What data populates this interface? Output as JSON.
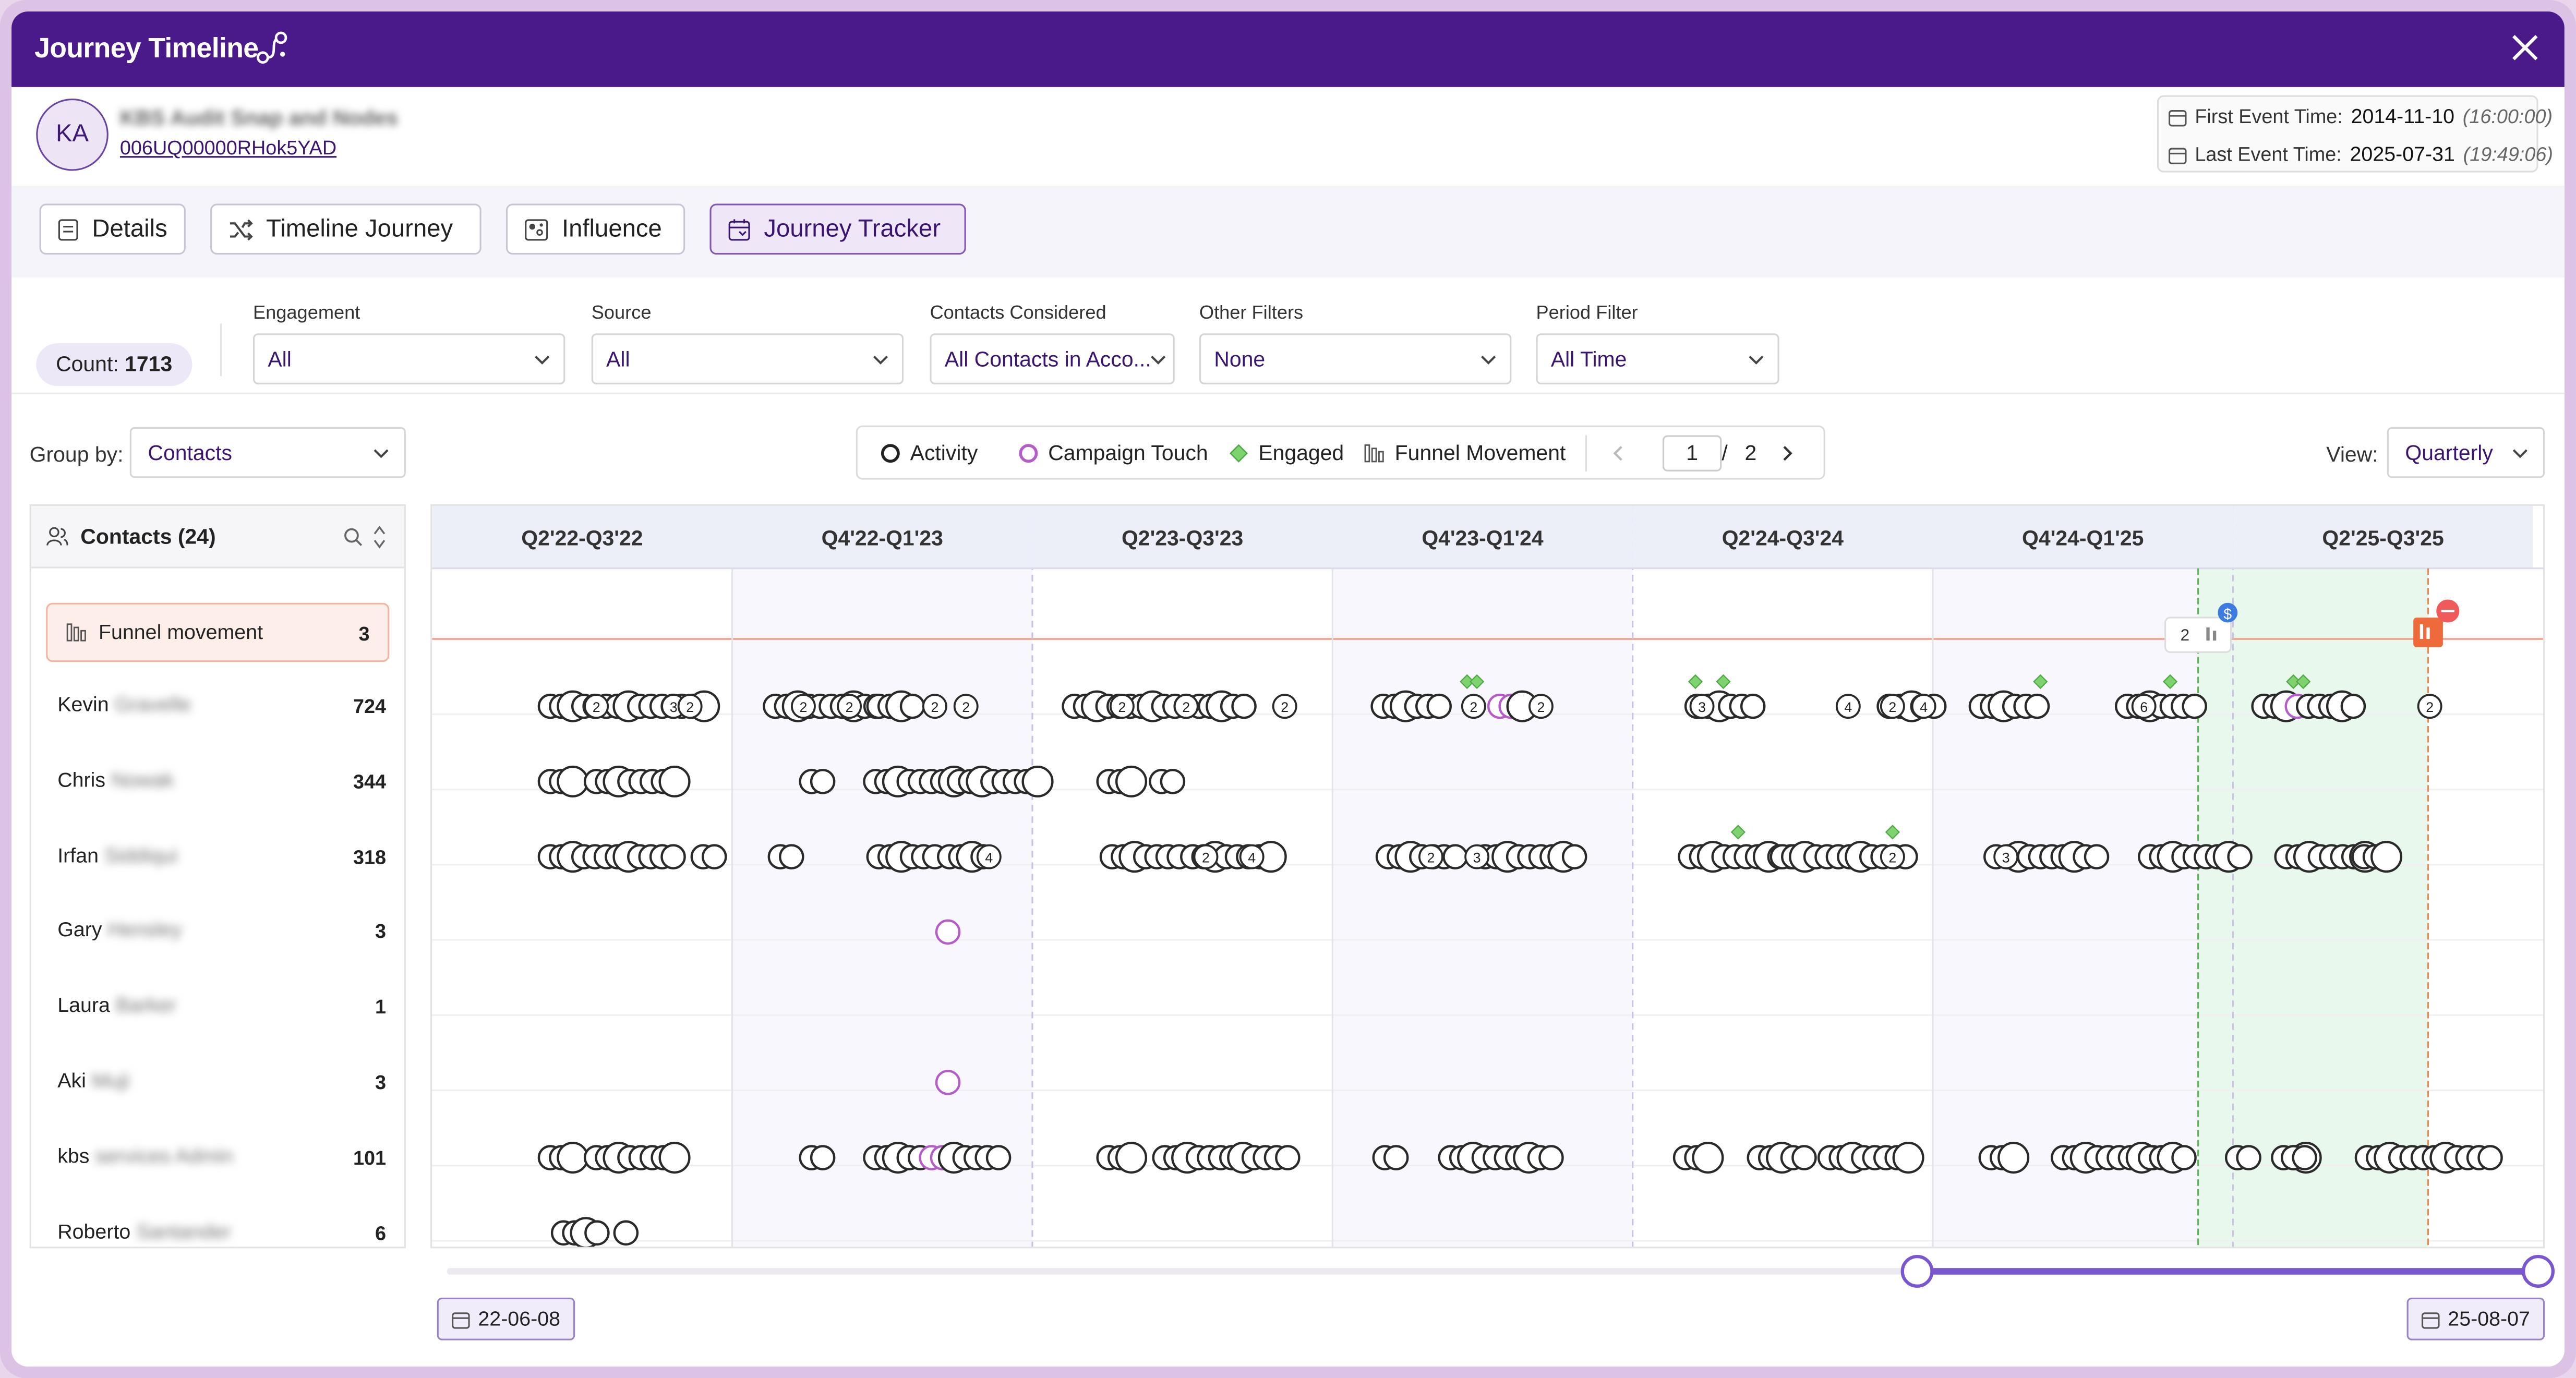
{
  "window": {
    "title": "Journey Timeline"
  },
  "account": {
    "initials": "KA",
    "name": "KBS Audit Snap and Nodes",
    "id": "006UQ00000RHok5YAD"
  },
  "events": {
    "first_label": "First Event Time:",
    "first_date": "2014-11-10",
    "first_time": "(16:00:00)",
    "last_label": "Last Event Time:",
    "last_date": "2025-07-31",
    "last_time": "(19:49:06)"
  },
  "tabs": [
    {
      "label": "Details",
      "icon": "document-icon"
    },
    {
      "label": "Timeline Journey",
      "icon": "shuffle-icon"
    },
    {
      "label": "Influence",
      "icon": "influence-icon"
    },
    {
      "label": "Journey Tracker",
      "icon": "calendar-icon",
      "active": true
    }
  ],
  "filters": {
    "count_label": "Count:",
    "count_value": "1713",
    "engagement": {
      "label": "Engagement",
      "value": "All"
    },
    "source": {
      "label": "Source",
      "value": "All"
    },
    "contacts": {
      "label": "Contacts Considered",
      "value": "All Contacts in Acco..."
    },
    "other": {
      "label": "Other Filters",
      "value": "None"
    },
    "period": {
      "label": "Period Filter",
      "value": "All Time"
    }
  },
  "groupby": {
    "label": "Group by:",
    "value": "Contacts"
  },
  "legend": {
    "activity": "Activity",
    "campaign": "Campaign Touch",
    "engaged": "Engaged",
    "funnel": "Funnel Movement",
    "page": "1",
    "page_sep": "/",
    "page_total": "2"
  },
  "view": {
    "label": "View:",
    "value": "Quarterly"
  },
  "contacts_panel": {
    "title": "Contacts (24)",
    "funnel_label": "Funnel movement",
    "funnel_count": "3"
  },
  "contacts": [
    {
      "first": "Kevin",
      "last": "Gravelle",
      "count": "724"
    },
    {
      "first": "Chris",
      "last": "Nowak",
      "count": "344"
    },
    {
      "first": "Irfan",
      "last": "Siddiqui",
      "count": "318"
    },
    {
      "first": "Gary",
      "last": "Hensley",
      "count": "3"
    },
    {
      "first": "Laura",
      "last": "Barker",
      "count": "1"
    },
    {
      "first": "Aki",
      "last": "Muji",
      "count": "3"
    },
    {
      "first": "kbs",
      "last": "services Admin",
      "count": "101"
    },
    {
      "first": "Roberto",
      "last": "Santander",
      "count": "6"
    }
  ],
  "quarters": [
    "Q2'22-Q3'22",
    "Q4'22-Q1'23",
    "Q2'23-Q3'23",
    "Q4'23-Q1'24",
    "Q2'24-Q3'24",
    "Q4'24-Q1'25",
    "Q2'25-Q3'25"
  ],
  "funnel_markers": {
    "count_badge": "2",
    "dollar_badge": "$"
  },
  "range": {
    "start": "22-06-08",
    "end": "25-08-07",
    "selected_start_fraction": 0.703,
    "selected_end_fraction": 1.0
  },
  "colors": {
    "header": "#4a1a8a",
    "accent": "#7a57d0",
    "campaign": "#b45cc8",
    "engaged": "#63c65a",
    "funnel_line": "#f3a48f",
    "highlight": "#e8f8ec"
  },
  "timeline_rows": [
    {
      "segments": [
        [
          "2"
        ],
        [
          "3",
          "2"
        ]
      ],
      "labels": [],
      "campaign": [],
      "engaged": []
    }
  ]
}
